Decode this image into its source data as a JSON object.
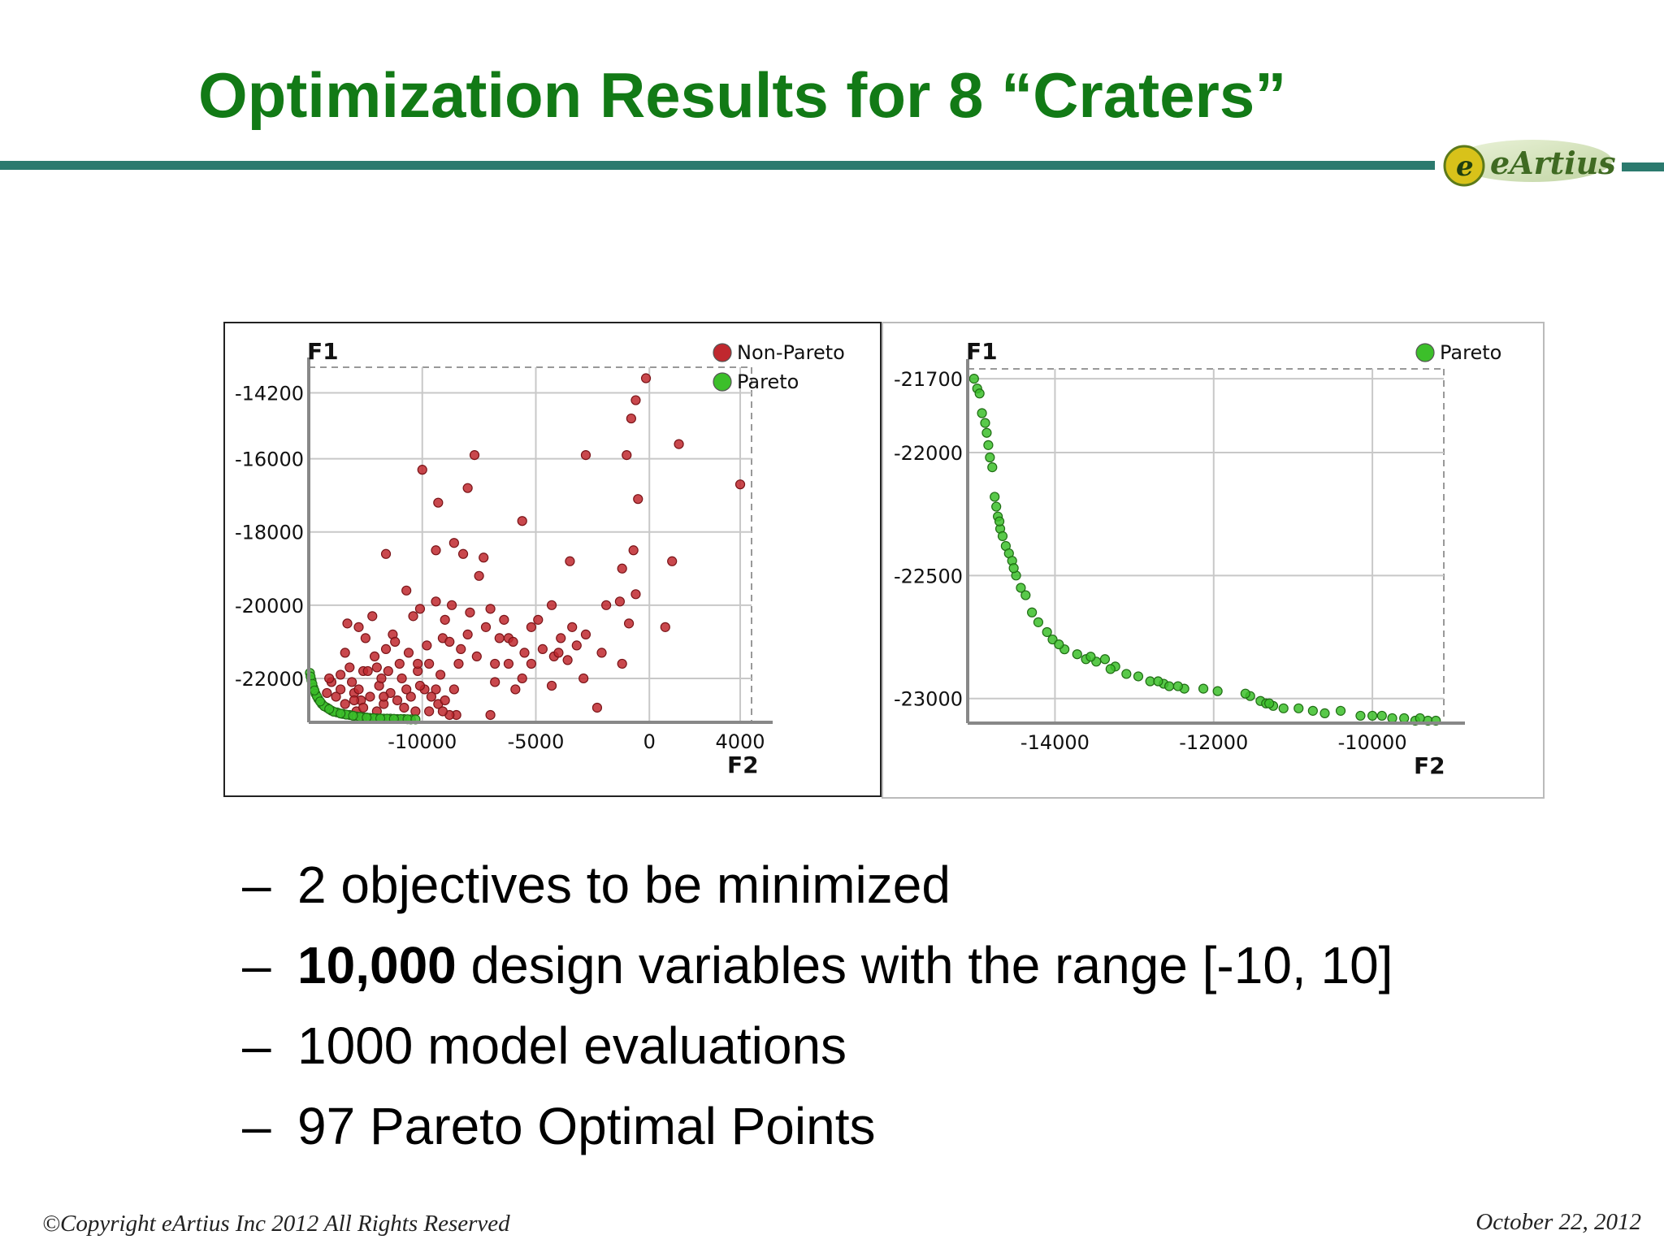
{
  "slide": {
    "title": "Optimization Results for 8 “Craters”",
    "logo_text": "eArtius",
    "bullets": [
      {
        "dash": "–",
        "bold": "",
        "text": "2 objectives to be minimized"
      },
      {
        "dash": "–",
        "bold": "10,000",
        "text": " design variables with the range [-10, 10]"
      },
      {
        "dash": "–",
        "bold": "",
        "text": "1000 model evaluations"
      },
      {
        "dash": "–",
        "bold": "",
        "text": "97 Pareto Optimal Points"
      }
    ],
    "footer_left": "©Copyright eArtius Inc 2012 All Rights Reserved",
    "footer_right": "October 22, 2012"
  },
  "colors": {
    "title": "#127a16",
    "rule": "#2b7a6e",
    "non_pareto": "#c0282e",
    "pareto": "#3cbf2a"
  },
  "chart_data": [
    {
      "type": "scatter",
      "xlabel": "F2",
      "ylabel": "F1",
      "xlim": [
        -15000,
        4500
      ],
      "ylim": [
        -23200,
        -13500
      ],
      "x_ticks": [
        {
          "value": -10000,
          "label": "-10000"
        },
        {
          "value": -5000,
          "label": "-5000"
        },
        {
          "value": 0,
          "label": "0"
        },
        {
          "value": 4000,
          "label": "4000"
        }
      ],
      "y_ticks": [
        {
          "value": -14200,
          "label": "-14200"
        },
        {
          "value": -16000,
          "label": "-16000"
        },
        {
          "value": -18000,
          "label": "-18000"
        },
        {
          "value": -20000,
          "label": "-20000"
        },
        {
          "value": -22000,
          "label": "-22000"
        }
      ],
      "grid": true,
      "legend_position": "top-right",
      "series": [
        {
          "name": "Non-Pareto",
          "color": "#c0282e",
          "points": [
            [
              -150,
              -13800
            ],
            [
              -600,
              -14400
            ],
            [
              -800,
              -14900
            ],
            [
              1300,
              -15600
            ],
            [
              -1000,
              -15900
            ],
            [
              -2800,
              -15900
            ],
            [
              -7700,
              -15900
            ],
            [
              -10000,
              -16300
            ],
            [
              -8000,
              -16800
            ],
            [
              -9300,
              -17200
            ],
            [
              4000,
              -16700
            ],
            [
              -500,
              -17100
            ],
            [
              -5600,
              -17700
            ],
            [
              -3500,
              -18800
            ],
            [
              -11600,
              -18600
            ],
            [
              -1200,
              -19000
            ],
            [
              -9400,
              -18500
            ],
            [
              -8600,
              -18300
            ],
            [
              -8200,
              -18600
            ],
            [
              -7300,
              -18700
            ],
            [
              -7500,
              -19200
            ],
            [
              -10700,
              -19600
            ],
            [
              -10100,
              -20100
            ],
            [
              -9400,
              -19900
            ],
            [
              -8700,
              -20000
            ],
            [
              -7900,
              -20200
            ],
            [
              -7000,
              -20100
            ],
            [
              -6400,
              -20400
            ],
            [
              -5200,
              -20600
            ],
            [
              -4300,
              -20000
            ],
            [
              -3400,
              -20600
            ],
            [
              -2800,
              -20800
            ],
            [
              -900,
              -20500
            ],
            [
              700,
              -20600
            ],
            [
              -1200,
              -21600
            ],
            [
              -2100,
              -21300
            ],
            [
              -3600,
              -21500
            ],
            [
              -4300,
              -22200
            ],
            [
              -4200,
              -21400
            ],
            [
              -5200,
              -21600
            ],
            [
              -4900,
              -20400
            ],
            [
              -5500,
              -21300
            ],
            [
              -6200,
              -20900
            ],
            [
              -6800,
              -21600
            ],
            [
              -8000,
              -20800
            ],
            [
              -9100,
              -20900
            ],
            [
              -9800,
              -21100
            ],
            [
              -10400,
              -20300
            ],
            [
              -11300,
              -20800
            ],
            [
              -12200,
              -20300
            ],
            [
              -12800,
              -20600
            ],
            [
              -13400,
              -21300
            ],
            [
              -12600,
              -21800
            ],
            [
              -13000,
              -22400
            ],
            [
              -11900,
              -22200
            ],
            [
              -11000,
              -21600
            ],
            [
              -10200,
              -21800
            ],
            [
              -9200,
              -21900
            ],
            [
              -8600,
              -22300
            ],
            [
              -6800,
              -22100
            ],
            [
              -6200,
              -21600
            ],
            [
              -5900,
              -22300
            ],
            [
              -2300,
              -22800
            ],
            [
              -7000,
              -23000
            ],
            [
              -8500,
              -23000
            ],
            [
              -9300,
              -22700
            ],
            [
              -10800,
              -22800
            ],
            [
              -11700,
              -22700
            ],
            [
              -12900,
              -22900
            ],
            [
              -11200,
              -21000
            ],
            [
              -13300,
              -20500
            ],
            [
              -12500,
              -20900
            ],
            [
              -12100,
              -21400
            ],
            [
              -11600,
              -21200
            ],
            [
              -10600,
              -21300
            ],
            [
              -9700,
              -21600
            ],
            [
              -9000,
              -20400
            ],
            [
              -8300,
              -21200
            ],
            [
              -7600,
              -21400
            ],
            [
              -7200,
              -20600
            ],
            [
              -6600,
              -20900
            ],
            [
              -6000,
              -21000
            ],
            [
              -5600,
              -22000
            ],
            [
              -4700,
              -21200
            ],
            [
              -4000,
              -21300
            ],
            [
              -3900,
              -20900
            ],
            [
              -2900,
              -22000
            ],
            [
              1000,
              -18800
            ],
            [
              -700,
              -18500
            ],
            [
              -1300,
              -19900
            ],
            [
              -1900,
              -20000
            ],
            [
              -3200,
              -21100
            ],
            [
              -600,
              -19700
            ],
            [
              -8400,
              -21600
            ],
            [
              -8800,
              -21000
            ],
            [
              -9900,
              -22300
            ],
            [
              -12300,
              -22500
            ],
            [
              -13100,
              -22100
            ],
            [
              -13600,
              -21900
            ],
            [
              -14000,
              -22100
            ],
            [
              -14200,
              -22400
            ],
            [
              -13800,
              -22500
            ],
            [
              -13400,
              -22700
            ],
            [
              -12700,
              -22600
            ],
            [
              -12000,
              -22900
            ],
            [
              -11400,
              -22400
            ],
            [
              -10500,
              -22500
            ],
            [
              -9700,
              -22900
            ],
            [
              -9000,
              -22600
            ],
            [
              -8800,
              -23000
            ],
            [
              -12400,
              -21800
            ],
            [
              -11800,
              -22000
            ],
            [
              -10900,
              -22000
            ],
            [
              -10100,
              -22200
            ],
            [
              -9400,
              -22300
            ],
            [
              -13600,
              -22300
            ],
            [
              -14100,
              -22000
            ],
            [
              -12800,
              -22300
            ],
            [
              -11100,
              -22600
            ],
            [
              -10300,
              -22900
            ],
            [
              -13000,
              -22600
            ],
            [
              -12600,
              -22800
            ],
            [
              -11700,
              -22500
            ],
            [
              -10700,
              -22300
            ],
            [
              -9600,
              -22500
            ],
            [
              -9100,
              -22900
            ],
            [
              -13200,
              -21700
            ],
            [
              -12000,
              -21700
            ],
            [
              -11500,
              -21800
            ],
            [
              -10200,
              -21600
            ]
          ]
        },
        {
          "name": "Pareto",
          "color": "#3cbf2a",
          "points": [
            [
              -14950,
              -21850
            ],
            [
              -14880,
              -22050
            ],
            [
              -14800,
              -22250
            ],
            [
              -14700,
              -22420
            ],
            [
              -14580,
              -22560
            ],
            [
              -14420,
              -22700
            ],
            [
              -14200,
              -22800
            ],
            [
              -14000,
              -22880
            ],
            [
              -13750,
              -22930
            ],
            [
              -13500,
              -22970
            ],
            [
              -13200,
              -23000
            ],
            [
              -12900,
              -23040
            ],
            [
              -12600,
              -23060
            ],
            [
              -12300,
              -23080
            ],
            [
              -12000,
              -23090
            ],
            [
              -11700,
              -23100
            ],
            [
              -11400,
              -23100
            ],
            [
              -11100,
              -23110
            ],
            [
              -10800,
              -23110
            ],
            [
              -10500,
              -23120
            ],
            [
              -14920,
              -21950
            ],
            [
              -14840,
              -22150
            ],
            [
              -14640,
              -22490
            ],
            [
              -14320,
              -22760
            ],
            [
              -13900,
              -22910
            ],
            [
              -13350,
              -22990
            ],
            [
              -12750,
              -23050
            ],
            [
              -12150,
              -23085
            ],
            [
              -11550,
              -23100
            ],
            [
              -10950,
              -23110
            ],
            [
              -14750,
              -22330
            ],
            [
              -14500,
              -22630
            ],
            [
              -14100,
              -22840
            ],
            [
              -13600,
              -22960
            ],
            [
              -13050,
              -23020
            ],
            [
              -12450,
              -23070
            ],
            [
              -11850,
              -23095
            ],
            [
              -11250,
              -23105
            ],
            [
              -10650,
              -23115
            ],
            [
              -10300,
              -23120
            ]
          ]
        }
      ]
    },
    {
      "type": "scatter",
      "xlabel": "F2",
      "ylabel": "F1",
      "xlim": [
        -15100,
        -9100
      ],
      "ylim": [
        -23100,
        -21660
      ],
      "x_ticks": [
        {
          "value": -14000,
          "label": "-14000"
        },
        {
          "value": -12000,
          "label": "-12000"
        },
        {
          "value": -10000,
          "label": "-10000"
        }
      ],
      "y_ticks": [
        {
          "value": -21700,
          "label": "-21700"
        },
        {
          "value": -22000,
          "label": "-22000"
        },
        {
          "value": -22500,
          "label": "-22500"
        },
        {
          "value": -23000,
          "label": "-23000"
        }
      ],
      "grid": true,
      "legend_position": "top-right",
      "series": [
        {
          "name": "Pareto",
          "color": "#3cbf2a",
          "points": [
            [
              -15020,
              -21700
            ],
            [
              -14980,
              -21740
            ],
            [
              -14920,
              -21840
            ],
            [
              -14880,
              -21880
            ],
            [
              -14860,
              -21920
            ],
            [
              -14820,
              -22020
            ],
            [
              -14790,
              -22060
            ],
            [
              -14760,
              -22180
            ],
            [
              -14740,
              -22220
            ],
            [
              -14720,
              -22260
            ],
            [
              -14690,
              -22310
            ],
            [
              -14660,
              -22340
            ],
            [
              -14620,
              -22380
            ],
            [
              -14580,
              -22410
            ],
            [
              -14540,
              -22440
            ],
            [
              -14490,
              -22500
            ],
            [
              -14430,
              -22550
            ],
            [
              -14370,
              -22580
            ],
            [
              -14290,
              -22650
            ],
            [
              -14210,
              -22690
            ],
            [
              -14030,
              -22760
            ],
            [
              -13880,
              -22800
            ],
            [
              -13720,
              -22820
            ],
            [
              -13610,
              -22840
            ],
            [
              -13480,
              -22850
            ],
            [
              -13370,
              -22840
            ],
            [
              -13240,
              -22870
            ],
            [
              -13100,
              -22900
            ],
            [
              -12950,
              -22910
            ],
            [
              -12800,
              -22930
            ],
            [
              -12630,
              -22940
            ],
            [
              -12560,
              -22950
            ],
            [
              -12370,
              -22960
            ],
            [
              -12130,
              -22960
            ],
            [
              -11950,
              -22970
            ],
            [
              -11540,
              -22990
            ],
            [
              -11410,
              -23010
            ],
            [
              -11340,
              -23020
            ],
            [
              -11250,
              -23030
            ],
            [
              -11120,
              -23040
            ],
            [
              -10930,
              -23040
            ],
            [
              -10600,
              -23060
            ],
            [
              -10400,
              -23050
            ],
            [
              -10150,
              -23070
            ],
            [
              -9880,
              -23070
            ],
            [
              -9750,
              -23080
            ],
            [
              -9600,
              -23080
            ],
            [
              -9460,
              -23090
            ],
            [
              -9300,
              -23090
            ],
            [
              -9200,
              -23090
            ],
            [
              -14950,
              -21760
            ],
            [
              -14700,
              -22280
            ],
            [
              -14100,
              -22730
            ],
            [
              -13550,
              -22830
            ],
            [
              -12700,
              -22930
            ],
            [
              -11600,
              -22980
            ],
            [
              -10750,
              -23050
            ],
            [
              -10000,
              -23070
            ],
            [
              -9400,
              -23080
            ],
            [
              -14840,
              -21970
            ],
            [
              -14520,
              -22470
            ],
            [
              -13950,
              -22780
            ],
            [
              -13300,
              -22880
            ],
            [
              -12450,
              -22950
            ],
            [
              -11300,
              -23020
            ]
          ]
        }
      ]
    }
  ]
}
